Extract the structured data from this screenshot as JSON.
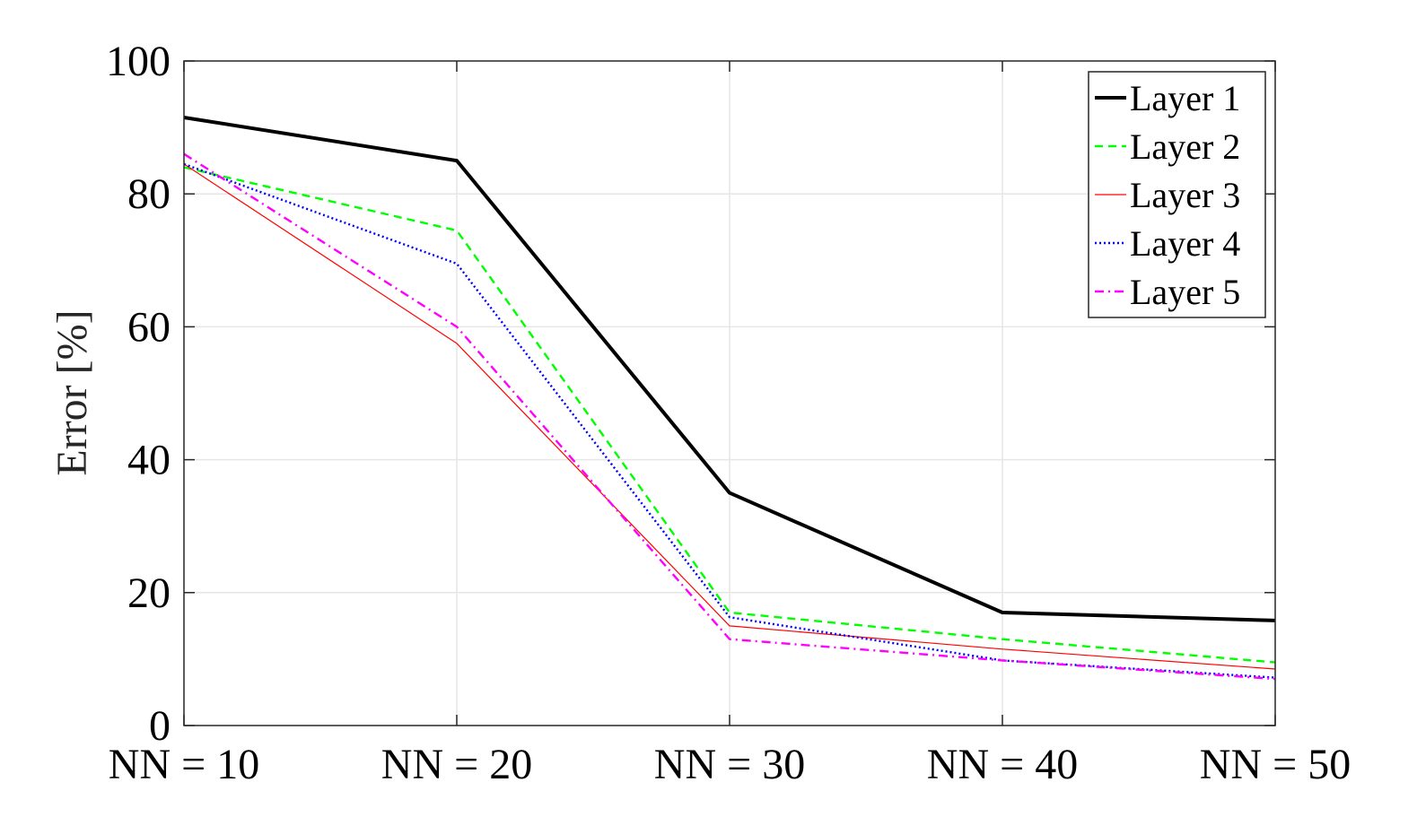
{
  "chart_data": {
    "type": "line",
    "title": "",
    "xlabel": "",
    "ylabel": "Error [%]",
    "categories": [
      "NN = 10",
      "NN = 20",
      "NN = 30",
      "NN = 40",
      "NN = 50"
    ],
    "ylim": [
      0,
      100
    ],
    "yticks": [
      "0",
      "20",
      "40",
      "60",
      "80",
      "100"
    ],
    "grid": true,
    "legend_position": "top-right",
    "series": [
      {
        "name": "Layer 1",
        "values": [
          91.5,
          85.0,
          35.0,
          17.0,
          15.8
        ],
        "color": "#000000",
        "dash": "solid"
      },
      {
        "name": "Layer 2",
        "values": [
          84.0,
          74.5,
          17.0,
          13.0,
          9.5
        ],
        "color": "#00ff00",
        "dash": "dashed"
      },
      {
        "name": "Layer 3",
        "values": [
          84.5,
          57.5,
          15.0,
          11.5,
          8.5
        ],
        "color": "#ff0000",
        "dash": "solid"
      },
      {
        "name": "Layer 4",
        "values": [
          84.5,
          69.5,
          16.3,
          9.8,
          7.2
        ],
        "color": "#0000ff",
        "dash": "dotted"
      },
      {
        "name": "Layer 5",
        "values": [
          86.0,
          60.0,
          13.0,
          9.8,
          7.0
        ],
        "color": "#ff00ff",
        "dash": "dashdot"
      }
    ]
  }
}
